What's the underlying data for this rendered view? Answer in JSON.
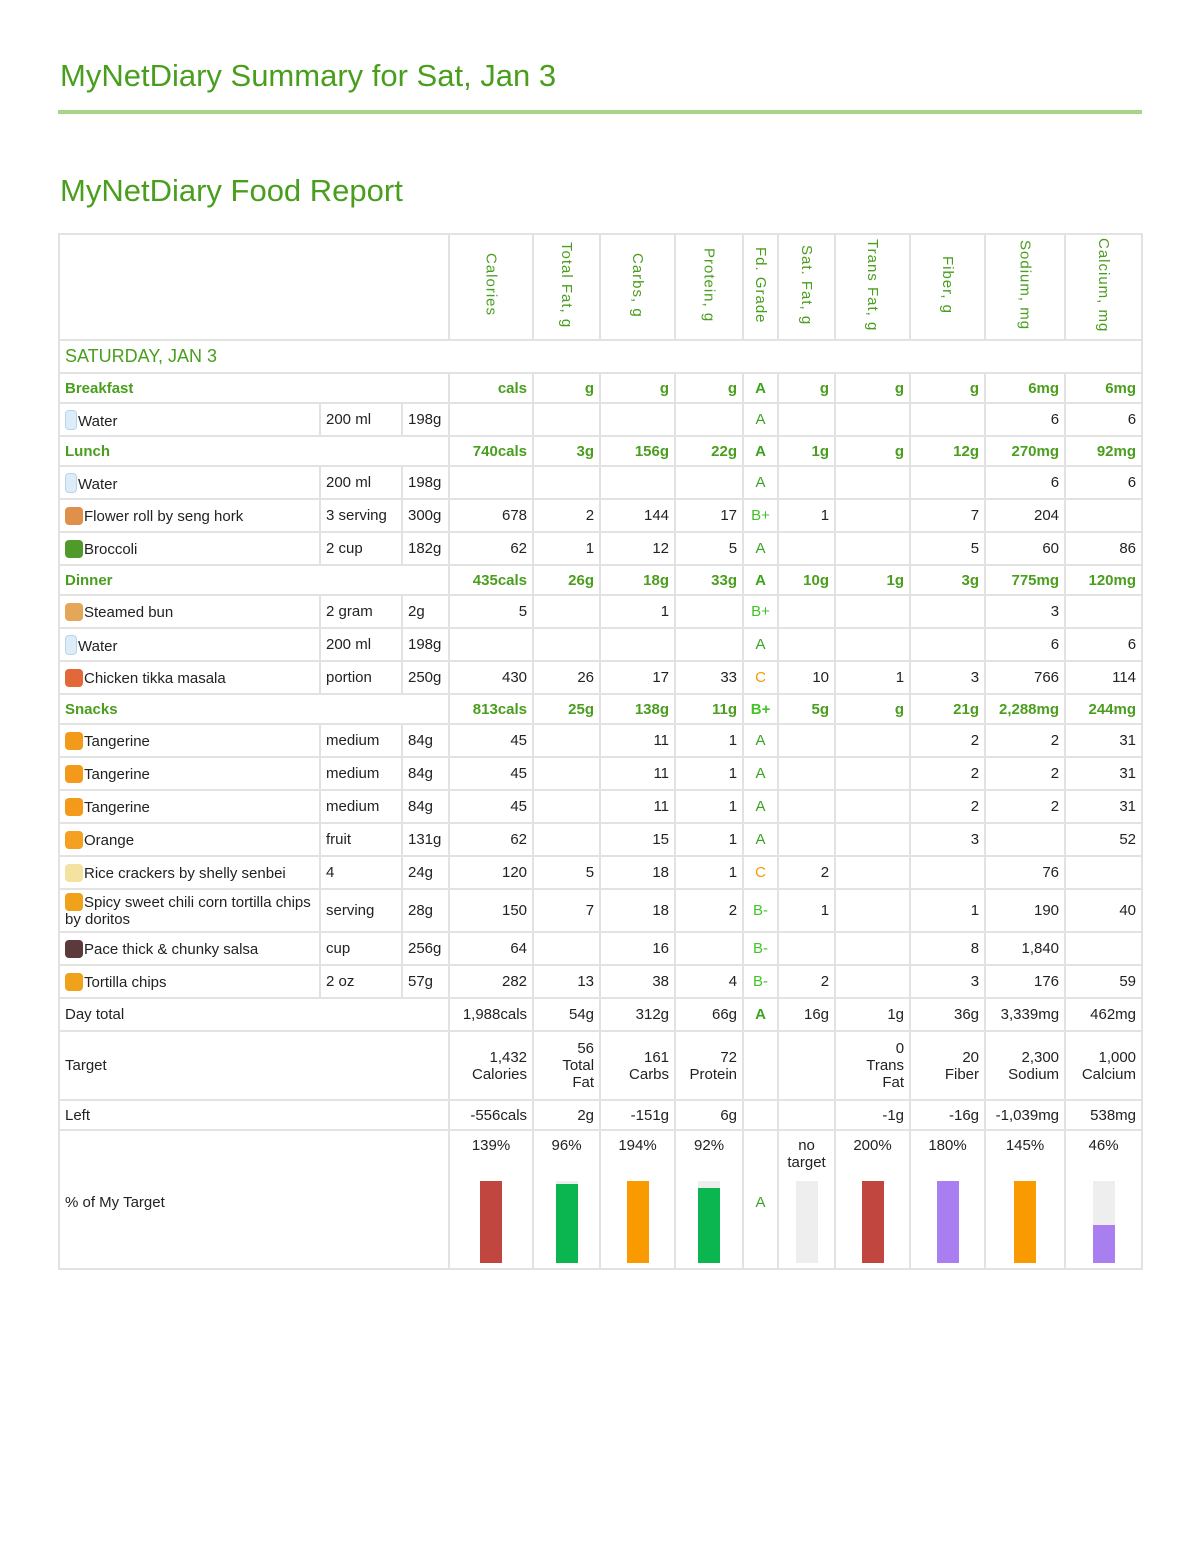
{
  "title": "MyNetDiary Summary for Sat, Jan 3",
  "report_title": "MyNetDiary Food Report",
  "columns": [
    "Calories",
    "Total Fat, g",
    "Carbs, g",
    "Protein, g",
    "Fd. Grade",
    "Sat. Fat, g",
    "Trans Fat, g",
    "Fiber, g",
    "Sodium, mg",
    "Calcium, mg"
  ],
  "day_label": "SATURDAY, JAN 3",
  "grade_colors": {
    "A": "#3aa321",
    "B+": "#44c22a",
    "B-": "#44c22a",
    "C": "#f59b00"
  },
  "meals": [
    {
      "name": "Breakfast",
      "totals": [
        "cals",
        "g",
        "g",
        "g",
        "A",
        "g",
        "g",
        "g",
        "6mg",
        "6mg"
      ],
      "foods": [
        {
          "icon": "water-glass-icon",
          "name": "Water",
          "amount": "200 ml",
          "weight": "198g",
          "values": [
            "",
            "",
            "",
            "",
            "A",
            "",
            "",
            "",
            "6",
            "6"
          ]
        }
      ]
    },
    {
      "name": "Lunch",
      "totals": [
        "740cals",
        "3g",
        "156g",
        "22g",
        "A",
        "1g",
        "g",
        "12g",
        "270mg",
        "92mg"
      ],
      "foods": [
        {
          "icon": "water-glass-icon",
          "name": "Water",
          "amount": "200 ml",
          "weight": "198g",
          "values": [
            "",
            "",
            "",
            "",
            "A",
            "",
            "",
            "",
            "6",
            "6"
          ]
        },
        {
          "icon": "bread-roll-icon",
          "name": "Flower roll by seng hork",
          "amount": "3 serving",
          "weight": "300g",
          "values": [
            "678",
            "2",
            "144",
            "17",
            "B+",
            "1",
            "",
            "7",
            "204",
            ""
          ]
        },
        {
          "icon": "broccoli-icon",
          "name": "Broccoli",
          "amount": "2 cup",
          "weight": "182g",
          "values": [
            "62",
            "1",
            "12",
            "5",
            "A",
            "",
            "",
            "5",
            "60",
            "86"
          ]
        }
      ]
    },
    {
      "name": "Dinner",
      "totals": [
        "435cals",
        "26g",
        "18g",
        "33g",
        "A",
        "10g",
        "1g",
        "3g",
        "775mg",
        "120mg"
      ],
      "foods": [
        {
          "icon": "bun-icon",
          "name": "Steamed bun",
          "amount": "2 gram",
          "weight": "2g",
          "values": [
            "5",
            "",
            "1",
            "",
            "B+",
            "",
            "",
            "",
            "3",
            ""
          ]
        },
        {
          "icon": "water-glass-icon",
          "name": "Water",
          "amount": "200 ml",
          "weight": "198g",
          "values": [
            "",
            "",
            "",
            "",
            "A",
            "",
            "",
            "",
            "6",
            "6"
          ]
        },
        {
          "icon": "curry-bowl-icon",
          "name": "Chicken tikka masala",
          "amount": "portion",
          "weight": "250g",
          "values": [
            "430",
            "26",
            "17",
            "33",
            "C",
            "10",
            "1",
            "3",
            "766",
            "114"
          ]
        }
      ]
    },
    {
      "name": "Snacks",
      "totals": [
        "813cals",
        "25g",
        "138g",
        "11g",
        "B+",
        "5g",
        "g",
        "21g",
        "2,288mg",
        "244mg"
      ],
      "foods": [
        {
          "icon": "tangerine-icon",
          "name": "Tangerine",
          "amount": "medium",
          "weight": "84g",
          "values": [
            "45",
            "",
            "11",
            "1",
            "A",
            "",
            "",
            "2",
            "2",
            "31"
          ]
        },
        {
          "icon": "tangerine-icon",
          "name": "Tangerine",
          "amount": "medium",
          "weight": "84g",
          "values": [
            "45",
            "",
            "11",
            "1",
            "A",
            "",
            "",
            "2",
            "2",
            "31"
          ]
        },
        {
          "icon": "tangerine-icon",
          "name": "Tangerine",
          "amount": "medium",
          "weight": "84g",
          "values": [
            "45",
            "",
            "11",
            "1",
            "A",
            "",
            "",
            "2",
            "2",
            "31"
          ]
        },
        {
          "icon": "orange-icon",
          "name": "Orange",
          "amount": "fruit",
          "weight": "131g",
          "values": [
            "62",
            "",
            "15",
            "1",
            "A",
            "",
            "",
            "3",
            "",
            "52"
          ]
        },
        {
          "icon": "cracker-icon",
          "name": "Rice crackers by shelly senbei",
          "amount": "4",
          "weight": "24g",
          "values": [
            "120",
            "5",
            "18",
            "1",
            "C",
            "2",
            "",
            "",
            "76",
            ""
          ]
        },
        {
          "icon": "chips-icon",
          "name": "Spicy sweet chili corn tortilla chips by doritos",
          "amount": "serving",
          "weight": "28g",
          "values": [
            "150",
            "7",
            "18",
            "2",
            "B-",
            "1",
            "",
            "1",
            "190",
            "40"
          ]
        },
        {
          "icon": "salsa-pot-icon",
          "name": "Pace thick & chunky salsa",
          "amount": "cup",
          "weight": "256g",
          "values": [
            "64",
            "",
            "16",
            "",
            "B-",
            "",
            "",
            "8",
            "1,840",
            ""
          ]
        },
        {
          "icon": "chips-icon",
          "name": "Tortilla chips",
          "amount": "2 oz",
          "weight": "57g",
          "values": [
            "282",
            "13",
            "38",
            "4",
            "B-",
            "2",
            "",
            "3",
            "176",
            "59"
          ]
        }
      ]
    }
  ],
  "day_total": {
    "label": "Day total",
    "values": [
      "1,988cals",
      "54g",
      "312g",
      "66g",
      "A",
      "16g",
      "1g",
      "36g",
      "3,339mg",
      "462mg"
    ]
  },
  "target": {
    "label": "Target",
    "values": [
      [
        "1,432",
        "Calories"
      ],
      [
        "56",
        "Total Fat"
      ],
      [
        "161",
        "Carbs"
      ],
      [
        "72",
        "Protein"
      ],
      [
        "",
        ""
      ],
      [
        "",
        ""
      ],
      [
        "0",
        "Trans Fat"
      ],
      [
        "20",
        "Fiber"
      ],
      [
        "2,300",
        "Sodium"
      ],
      [
        "1,000",
        "Calcium"
      ]
    ]
  },
  "left": {
    "label": "Left",
    "values": [
      "-556cals",
      "2g",
      "-151g",
      "6g",
      "",
      "",
      "-1g",
      "-16g",
      "-1,039mg",
      "538mg"
    ]
  },
  "percent": {
    "label": "% of My Target",
    "texts": [
      "139%",
      "96%",
      "194%",
      "92%",
      "A",
      "no target",
      "200%",
      "180%",
      "145%",
      "46%"
    ],
    "fill": [
      139,
      96,
      194,
      92,
      null,
      0,
      200,
      180,
      145,
      46
    ],
    "colors": [
      "#c0463f",
      "#0bb650",
      "#f99b00",
      "#0bb650",
      null,
      "#eeeeee",
      "#c0463f",
      "#a87ef0",
      "#f99b00",
      "#a87ef0"
    ]
  }
}
